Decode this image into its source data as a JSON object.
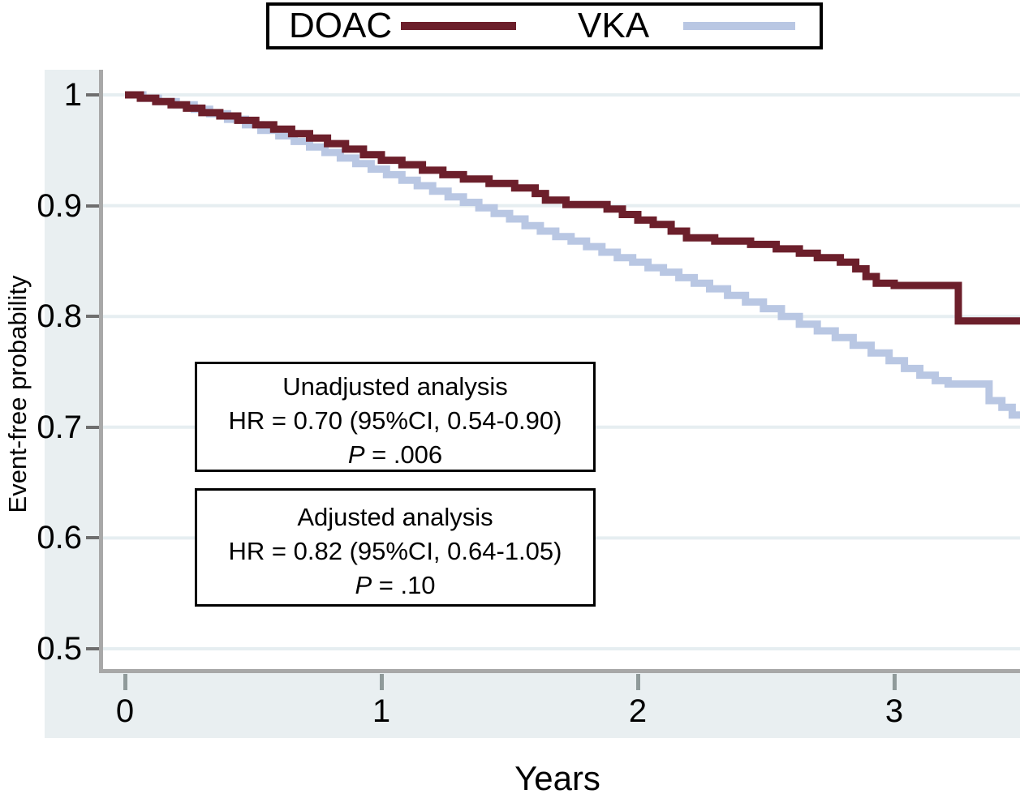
{
  "legend": {
    "items": [
      {
        "label": "DOAC",
        "color": "#6c1f2b"
      },
      {
        "label": "VKA",
        "color": "#b9c7e3"
      }
    ]
  },
  "axes": {
    "y_title": "Event-free probability",
    "x_title": "Years",
    "y_tick_labels": [
      "1",
      "0.9",
      "0.8",
      "0.7",
      "0.6",
      "0.5"
    ],
    "x_tick_labels": [
      "0",
      "1",
      "2",
      "3"
    ]
  },
  "annotations": [
    {
      "title": "Unadjusted analysis",
      "hr_line": "HR = 0.70 (95%CI, 0.54-0.90)",
      "p_label": "P",
      "p_rest": " = .006"
    },
    {
      "title": "Adjusted analysis",
      "hr_line": "HR = 0.82 (95%CI, 0.64-1.05)",
      "p_label": "P",
      "p_rest": " = .10"
    }
  ],
  "colors": {
    "doac": "#6c1f2b",
    "vka": "#b9c7e3",
    "gridline": "#e6eef1",
    "band": "#e9eff1",
    "axis": "#a8a8a8"
  },
  "chart_data": {
    "type": "line",
    "subtype": "kaplan-meier-step",
    "title": "",
    "xlabel": "Years",
    "ylabel": "Event-free probability",
    "xlim": [
      0,
      3.5
    ],
    "ylim": [
      0.48,
      1.02
    ],
    "x_ticks": [
      0,
      1,
      2,
      3
    ],
    "y_ticks": [
      1.0,
      0.9,
      0.8,
      0.7,
      0.6,
      0.5
    ],
    "grid": "horizontal",
    "legend_position": "top-center",
    "series": [
      {
        "name": "VKA",
        "color": "#b9c7e3",
        "points": [
          [
            0,
            1.0
          ],
          [
            0.07,
            0.997
          ],
          [
            0.13,
            0.994
          ],
          [
            0.2,
            0.991
          ],
          [
            0.27,
            0.987
          ],
          [
            0.33,
            0.983
          ],
          [
            0.4,
            0.978
          ],
          [
            0.47,
            0.973
          ],
          [
            0.53,
            0.968
          ],
          [
            0.6,
            0.963
          ],
          [
            0.66,
            0.958
          ],
          [
            0.72,
            0.953
          ],
          [
            0.78,
            0.948
          ],
          [
            0.84,
            0.943
          ],
          [
            0.9,
            0.938
          ],
          [
            0.96,
            0.933
          ],
          [
            1.02,
            0.928
          ],
          [
            1.08,
            0.923
          ],
          [
            1.14,
            0.918
          ],
          [
            1.2,
            0.913
          ],
          [
            1.26,
            0.908
          ],
          [
            1.32,
            0.903
          ],
          [
            1.38,
            0.898
          ],
          [
            1.44,
            0.893
          ],
          [
            1.5,
            0.888
          ],
          [
            1.56,
            0.882
          ],
          [
            1.62,
            0.877
          ],
          [
            1.68,
            0.872
          ],
          [
            1.74,
            0.868
          ],
          [
            1.8,
            0.863
          ],
          [
            1.86,
            0.858
          ],
          [
            1.92,
            0.853
          ],
          [
            1.98,
            0.849
          ],
          [
            2.04,
            0.844
          ],
          [
            2.1,
            0.84
          ],
          [
            2.16,
            0.835
          ],
          [
            2.22,
            0.83
          ],
          [
            2.28,
            0.825
          ],
          [
            2.35,
            0.819
          ],
          [
            2.42,
            0.813
          ],
          [
            2.49,
            0.807
          ],
          [
            2.56,
            0.8
          ],
          [
            2.63,
            0.793
          ],
          [
            2.7,
            0.787
          ],
          [
            2.77,
            0.781
          ],
          [
            2.84,
            0.774
          ],
          [
            2.91,
            0.767
          ],
          [
            2.98,
            0.76
          ],
          [
            3.04,
            0.753
          ],
          [
            3.1,
            0.747
          ],
          [
            3.16,
            0.742
          ],
          [
            3.21,
            0.739
          ],
          [
            3.37,
            0.724
          ],
          [
            3.42,
            0.718
          ],
          [
            3.46,
            0.711
          ]
        ]
      },
      {
        "name": "DOAC",
        "color": "#6c1f2b",
        "points": [
          [
            0,
            1.0
          ],
          [
            0.06,
            0.997
          ],
          [
            0.12,
            0.994
          ],
          [
            0.18,
            0.991
          ],
          [
            0.24,
            0.988
          ],
          [
            0.3,
            0.984
          ],
          [
            0.37,
            0.981
          ],
          [
            0.44,
            0.977
          ],
          [
            0.51,
            0.973
          ],
          [
            0.58,
            0.969
          ],
          [
            0.65,
            0.965
          ],
          [
            0.72,
            0.961
          ],
          [
            0.79,
            0.956
          ],
          [
            0.86,
            0.951
          ],
          [
            0.93,
            0.946
          ],
          [
            1.0,
            0.941
          ],
          [
            1.08,
            0.937
          ],
          [
            1.16,
            0.932
          ],
          [
            1.24,
            0.928
          ],
          [
            1.32,
            0.924
          ],
          [
            1.42,
            0.92
          ],
          [
            1.52,
            0.916
          ],
          [
            1.6,
            0.911
          ],
          [
            1.64,
            0.905
          ],
          [
            1.72,
            0.901
          ],
          [
            1.88,
            0.897
          ],
          [
            1.94,
            0.892
          ],
          [
            2.0,
            0.887
          ],
          [
            2.06,
            0.883
          ],
          [
            2.13,
            0.877
          ],
          [
            2.19,
            0.871
          ],
          [
            2.3,
            0.868
          ],
          [
            2.44,
            0.865
          ],
          [
            2.54,
            0.861
          ],
          [
            2.63,
            0.857
          ],
          [
            2.7,
            0.853
          ],
          [
            2.79,
            0.849
          ],
          [
            2.85,
            0.843
          ],
          [
            2.89,
            0.836
          ],
          [
            2.93,
            0.83
          ],
          [
            3.0,
            0.828
          ],
          [
            3.25,
            0.796
          ]
        ]
      }
    ],
    "annotations": [
      "Unadjusted analysis HR = 0.70 (95%CI, 0.54-0.90) P = .006",
      "Adjusted analysis HR = 0.82 (95%CI, 0.64-1.05) P = .10"
    ]
  }
}
